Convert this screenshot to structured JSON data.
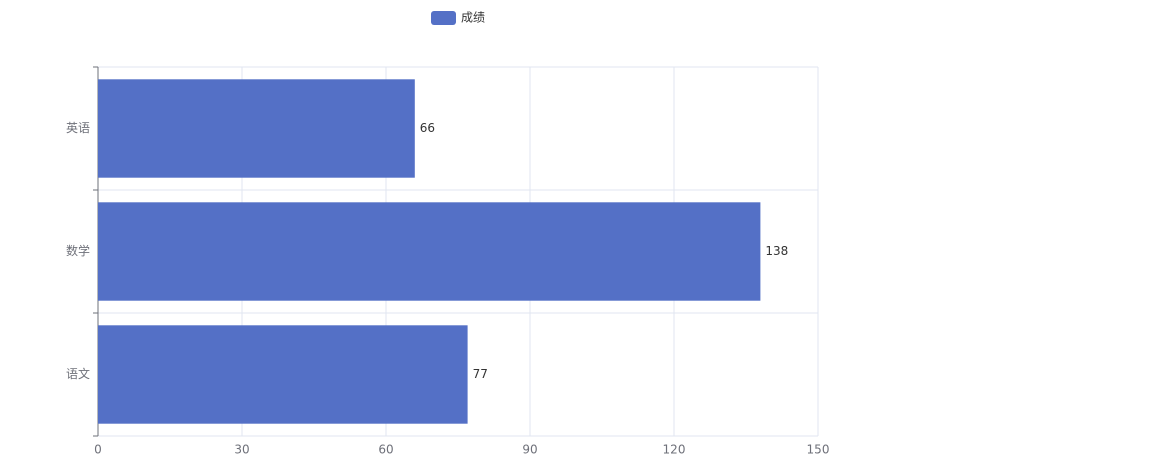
{
  "chart_data": {
    "type": "bar",
    "orientation": "horizontal",
    "categories": [
      "语文",
      "数学",
      "英语"
    ],
    "series": [
      {
        "name": "成绩",
        "color": "#5470c6",
        "values": [
          77,
          138,
          66
        ]
      }
    ],
    "xlim": [
      0,
      150
    ],
    "xticks": [
      0,
      30,
      60,
      90,
      120,
      150
    ],
    "grid": true,
    "legend": "top"
  }
}
